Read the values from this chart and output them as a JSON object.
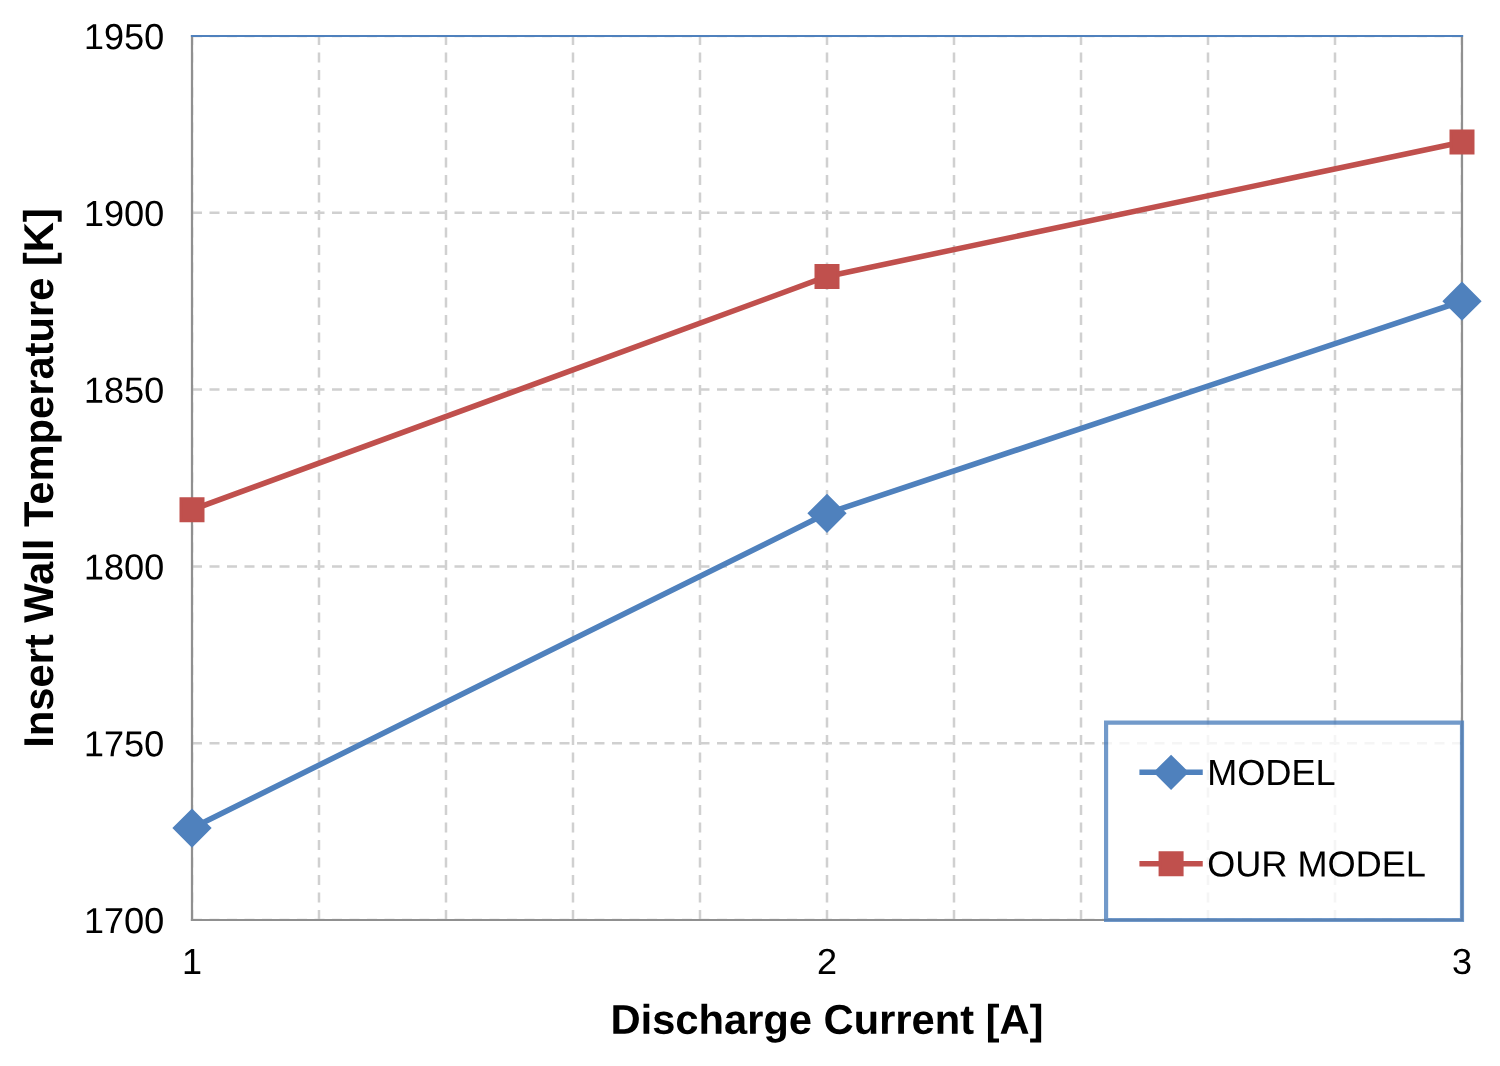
{
  "chart_data": {
    "type": "line",
    "xlabel": "Discharge Current [A]",
    "ylabel": "Insert Wall Temperature [K]",
    "x": [
      1,
      2,
      3
    ],
    "series": [
      {
        "name": "MODEL",
        "color": "#4f81bd",
        "marker": "diamond",
        "values": [
          1726,
          1815,
          1875
        ]
      },
      {
        "name": "OUR MODEL",
        "color": "#c0504d",
        "marker": "square",
        "values": [
          1816,
          1882,
          1920
        ]
      }
    ],
    "xlim": [
      1,
      3
    ],
    "xticks": [
      1,
      {
        "value": 1.2,
        "label": null
      },
      {
        "value": 1.4,
        "label": null
      },
      {
        "value": 1.6,
        "label": null
      },
      {
        "value": 1.8,
        "label": null
      },
      2,
      {
        "value": 2.2,
        "label": null
      },
      {
        "value": 2.4,
        "label": null
      },
      {
        "value": 2.6,
        "label": null
      },
      {
        "value": 2.8,
        "label": null
      },
      3
    ],
    "ylim": [
      1700,
      1950
    ],
    "yticks": [
      1700,
      1750,
      1800,
      1850,
      1900,
      1950
    ],
    "grid": true,
    "legend": "bottom right",
    "line_style": "solid"
  }
}
